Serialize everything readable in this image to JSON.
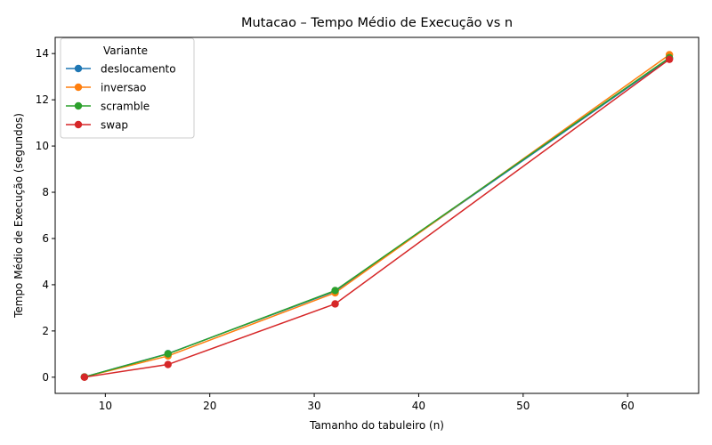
{
  "chart_data": {
    "type": "line",
    "title": "Mutacao – Tempo Médio de Execução vs n",
    "xlabel": "Tamanho do tabuleiro (n)",
    "ylabel": "Tempo Médio de Execução (segundos)",
    "xlim": [
      5.2,
      66.8
    ],
    "ylim": [
      -0.7,
      14.7
    ],
    "xticks": [
      10,
      20,
      30,
      40,
      50,
      60
    ],
    "yticks": [
      0,
      2,
      4,
      6,
      8,
      10,
      12,
      14
    ],
    "grid": false,
    "legend": {
      "title": "Variante",
      "placement": "top-left"
    },
    "x": [
      8,
      16,
      32,
      64
    ],
    "series": [
      {
        "name": "deslocamento",
        "color": "#1f77b4",
        "values": [
          0.01,
          1.02,
          3.72,
          13.78
        ]
      },
      {
        "name": "inversao",
        "color": "#ff7f0e",
        "values": [
          0.01,
          0.92,
          3.65,
          13.95
        ]
      },
      {
        "name": "scramble",
        "color": "#2ca02c",
        "values": [
          0.01,
          1.01,
          3.75,
          13.82
        ]
      },
      {
        "name": "swap",
        "color": "#d62728",
        "values": [
          0.0,
          0.55,
          3.17,
          13.75
        ]
      }
    ]
  }
}
